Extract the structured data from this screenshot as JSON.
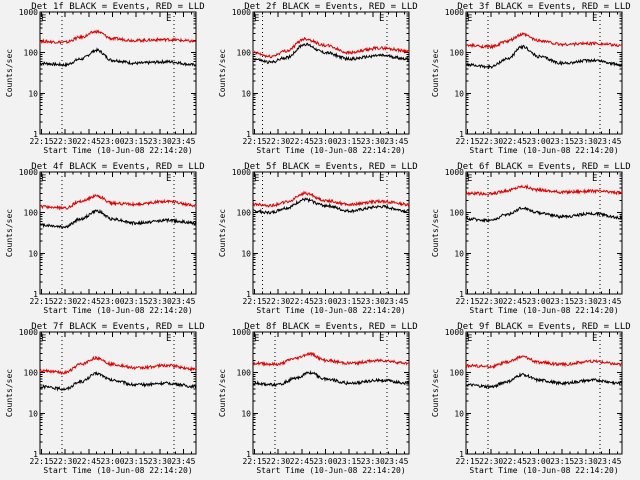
{
  "colors": {
    "background": "#f2f2f2",
    "events": "#000000",
    "lld": "#e00000"
  },
  "chart_data": [
    {
      "type": "line",
      "title": "Det 1f BLACK = Events, RED = LLD",
      "xlabel": "Start Time (10-Jun-08 22:14:20)",
      "ylabel": "Counts/sec",
      "yscale": "log",
      "ylim": [
        1,
        1000
      ],
      "yticks": [
        "1",
        "10",
        "100",
        "1000"
      ],
      "xticks": [
        "22:15",
        "22:30",
        "22:45",
        "23:00",
        "23:15",
        "23:30",
        "23:45"
      ],
      "xlim": [
        "22:14",
        "23:53"
      ],
      "markers": [
        "22:28",
        "23:39"
      ],
      "marker_labels": [
        "E",
        "E"
      ],
      "series": [
        {
          "name": "Events",
          "color": "#000000",
          "x": [
            "22:14",
            "22:30",
            "22:40",
            "22:50",
            "23:00",
            "23:15",
            "23:35",
            "23:53"
          ],
          "values": [
            55,
            50,
            70,
            115,
            65,
            55,
            60,
            50
          ]
        },
        {
          "name": "LLD",
          "color": "#e00000",
          "x": [
            "22:14",
            "22:30",
            "22:40",
            "22:50",
            "23:00",
            "23:15",
            "23:35",
            "23:53"
          ],
          "values": [
            190,
            180,
            240,
            330,
            220,
            200,
            210,
            190
          ]
        }
      ]
    },
    {
      "type": "line",
      "title": "Det 2f BLACK = Events, RED = LLD",
      "xlabel": "Start Time (10-Jun-08 22:14:20)",
      "ylabel": "Counts/sec",
      "yscale": "log",
      "ylim": [
        1,
        1000
      ],
      "yticks": [
        "1",
        "10",
        "100",
        "1000"
      ],
      "xticks": [
        "22:15",
        "22:30",
        "22:45",
        "23:00",
        "23:15",
        "23:30",
        "23:45"
      ],
      "xlim": [
        "22:14",
        "23:53"
      ],
      "markers": [
        "22:20",
        "23:39"
      ],
      "marker_labels": [
        "E",
        "E"
      ],
      "series": [
        {
          "name": "Events",
          "color": "#000000",
          "x": [
            "22:14",
            "22:25",
            "22:35",
            "22:47",
            "23:00",
            "23:15",
            "23:35",
            "23:53"
          ],
          "values": [
            70,
            58,
            75,
            160,
            100,
            70,
            85,
            70
          ]
        },
        {
          "name": "LLD",
          "color": "#e00000",
          "x": [
            "22:14",
            "22:25",
            "22:35",
            "22:47",
            "23:00",
            "23:15",
            "23:35",
            "23:53"
          ],
          "values": [
            100,
            80,
            110,
            220,
            150,
            100,
            130,
            110
          ]
        }
      ]
    },
    {
      "type": "line",
      "title": "Det 3f BLACK = Events, RED = LLD",
      "xlabel": "Start Time (10-Jun-08 22:14:20)",
      "ylabel": "Counts/sec",
      "yscale": "log",
      "ylim": [
        1,
        1000
      ],
      "yticks": [
        "1",
        "10",
        "100",
        "1000"
      ],
      "xticks": [
        "22:15",
        "22:30",
        "22:45",
        "23:00",
        "23:15",
        "23:30",
        "23:45"
      ],
      "xlim": [
        "22:14",
        "23:53"
      ],
      "markers": [
        "22:28",
        "23:39"
      ],
      "marker_labels": [
        "E",
        "E"
      ],
      "series": [
        {
          "name": "Events",
          "color": "#000000",
          "x": [
            "22:14",
            "22:30",
            "22:40",
            "22:50",
            "23:00",
            "23:15",
            "23:35",
            "23:53"
          ],
          "values": [
            50,
            45,
            70,
            140,
            80,
            55,
            65,
            50
          ]
        },
        {
          "name": "LLD",
          "color": "#e00000",
          "x": [
            "22:14",
            "22:30",
            "22:40",
            "22:50",
            "23:00",
            "23:15",
            "23:35",
            "23:53"
          ],
          "values": [
            150,
            140,
            190,
            280,
            200,
            160,
            170,
            150
          ]
        }
      ]
    },
    {
      "type": "line",
      "title": "Det 4f BLACK = Events, RED = LLD",
      "xlabel": "Start Time (10-Jun-08 22:14:20)",
      "ylabel": "Counts/sec",
      "yscale": "log",
      "ylim": [
        1,
        1000
      ],
      "yticks": [
        "1",
        "10",
        "100",
        "1000"
      ],
      "xticks": [
        "22:15",
        "22:30",
        "22:45",
        "23:00",
        "23:15",
        "23:30",
        "23:45"
      ],
      "xlim": [
        "22:14",
        "23:53"
      ],
      "markers": [
        "22:28",
        "23:39"
      ],
      "marker_labels": [
        "E",
        "E"
      ],
      "series": [
        {
          "name": "Events",
          "color": "#000000",
          "x": [
            "22:14",
            "22:30",
            "22:40",
            "22:50",
            "23:00",
            "23:15",
            "23:35",
            "23:53"
          ],
          "values": [
            50,
            45,
            70,
            110,
            70,
            55,
            65,
            55
          ]
        },
        {
          "name": "LLD",
          "color": "#e00000",
          "x": [
            "22:14",
            "22:30",
            "22:40",
            "22:50",
            "23:00",
            "23:15",
            "23:35",
            "23:53"
          ],
          "values": [
            140,
            130,
            190,
            260,
            170,
            160,
            190,
            150
          ]
        }
      ]
    },
    {
      "type": "line",
      "title": "Det 5f BLACK = Events, RED = LLD",
      "xlabel": "Start Time (10-Jun-08 22:14:20)",
      "ylabel": "Counts/sec",
      "yscale": "log",
      "ylim": [
        1,
        1000
      ],
      "yticks": [
        "1",
        "10",
        "100",
        "1000"
      ],
      "xticks": [
        "22:15",
        "22:30",
        "22:45",
        "23:00",
        "23:15",
        "23:30",
        "23:45"
      ],
      "xlim": [
        "22:14",
        "23:53"
      ],
      "markers": [
        "22:20",
        "23:39"
      ],
      "marker_labels": [
        "E",
        "E"
      ],
      "series": [
        {
          "name": "Events",
          "color": "#000000",
          "x": [
            "22:14",
            "22:25",
            "22:35",
            "22:47",
            "23:00",
            "23:15",
            "23:35",
            "23:53"
          ],
          "values": [
            110,
            100,
            130,
            210,
            150,
            110,
            140,
            110
          ]
        },
        {
          "name": "LLD",
          "color": "#e00000",
          "x": [
            "22:14",
            "22:25",
            "22:35",
            "22:47",
            "23:00",
            "23:15",
            "23:35",
            "23:53"
          ],
          "values": [
            160,
            150,
            180,
            300,
            200,
            160,
            190,
            160
          ]
        }
      ]
    },
    {
      "type": "line",
      "title": "Det 6f BLACK = Events, RED = LLD",
      "xlabel": "Start Time (10-Jun-08 22:14:20)",
      "ylabel": "Counts/sec",
      "yscale": "log",
      "ylim": [
        1,
        1000
      ],
      "yticks": [
        "1",
        "10",
        "100",
        "1000"
      ],
      "xticks": [
        "22:15",
        "22:30",
        "22:45",
        "23:00",
        "23:15",
        "23:30",
        "23:45"
      ],
      "xlim": [
        "22:14",
        "23:53"
      ],
      "markers": [
        "22:28",
        "23:39"
      ],
      "marker_labels": [
        "E",
        "E"
      ],
      "series": [
        {
          "name": "Events",
          "color": "#000000",
          "x": [
            "22:14",
            "22:30",
            "22:40",
            "22:50",
            "23:00",
            "23:15",
            "23:35",
            "23:53"
          ],
          "values": [
            70,
            65,
            90,
            130,
            100,
            80,
            95,
            75
          ]
        },
        {
          "name": "LLD",
          "color": "#e00000",
          "x": [
            "22:14",
            "22:30",
            "22:40",
            "22:50",
            "23:00",
            "23:15",
            "23:35",
            "23:53"
          ],
          "values": [
            300,
            290,
            350,
            440,
            360,
            320,
            340,
            310
          ]
        }
      ]
    },
    {
      "type": "line",
      "title": "Det 7f BLACK = Events, RED = LLD",
      "xlabel": "Start Time (10-Jun-08 22:14:20)",
      "ylabel": "Counts/sec",
      "yscale": "log",
      "ylim": [
        1,
        1000
      ],
      "yticks": [
        "1",
        "10",
        "100",
        "1000"
      ],
      "xticks": [
        "22:15",
        "22:30",
        "22:45",
        "23:00",
        "23:15",
        "23:30",
        "23:45"
      ],
      "xlim": [
        "22:14",
        "23:53"
      ],
      "markers": [
        "22:28",
        "23:39"
      ],
      "marker_labels": [
        "E",
        "E"
      ],
      "series": [
        {
          "name": "Events",
          "color": "#000000",
          "x": [
            "22:14",
            "22:30",
            "22:40",
            "22:50",
            "23:00",
            "23:15",
            "23:35",
            "23:53"
          ],
          "values": [
            45,
            40,
            60,
            95,
            65,
            50,
            55,
            45
          ]
        },
        {
          "name": "LLD",
          "color": "#e00000",
          "x": [
            "22:14",
            "22:30",
            "22:40",
            "22:50",
            "23:00",
            "23:15",
            "23:35",
            "23:53"
          ],
          "values": [
            110,
            100,
            160,
            230,
            160,
            130,
            150,
            120
          ]
        }
      ]
    },
    {
      "type": "line",
      "title": "Det 8f BLACK = Events, RED = LLD",
      "xlabel": "Start Time (10-Jun-08 22:14:20)",
      "ylabel": "Counts/sec",
      "yscale": "log",
      "ylim": [
        1,
        1000
      ],
      "yticks": [
        "1",
        "10",
        "100",
        "1000"
      ],
      "xticks": [
        "22:15",
        "22:30",
        "22:45",
        "23:00",
        "23:15",
        "23:30",
        "23:45"
      ],
      "xlim": [
        "22:14",
        "23:53"
      ],
      "markers": [
        "22:28",
        "23:39"
      ],
      "marker_labels": [
        "E",
        "E"
      ],
      "series": [
        {
          "name": "Events",
          "color": "#000000",
          "x": [
            "22:14",
            "22:30",
            "22:40",
            "22:50",
            "23:00",
            "23:15",
            "23:35",
            "23:53"
          ],
          "values": [
            55,
            50,
            70,
            100,
            70,
            55,
            65,
            55
          ]
        },
        {
          "name": "LLD",
          "color": "#e00000",
          "x": [
            "22:14",
            "22:30",
            "22:40",
            "22:50",
            "23:00",
            "23:15",
            "23:35",
            "23:53"
          ],
          "values": [
            170,
            160,
            220,
            290,
            200,
            170,
            200,
            170
          ]
        }
      ]
    },
    {
      "type": "line",
      "title": "Det 9f BLACK = Events, RED = LLD",
      "xlabel": "Start Time (10-Jun-08 22:14:20)",
      "ylabel": "Counts/sec",
      "yscale": "log",
      "ylim": [
        1,
        1000
      ],
      "yticks": [
        "1",
        "10",
        "100",
        "1000"
      ],
      "xticks": [
        "22:15",
        "22:30",
        "22:45",
        "23:00",
        "23:15",
        "23:30",
        "23:45"
      ],
      "xlim": [
        "22:14",
        "23:53"
      ],
      "markers": [
        "22:28",
        "23:39"
      ],
      "marker_labels": [
        "E",
        "E"
      ],
      "series": [
        {
          "name": "Events",
          "color": "#000000",
          "x": [
            "22:14",
            "22:30",
            "22:40",
            "22:50",
            "23:00",
            "23:15",
            "23:35",
            "23:53"
          ],
          "values": [
            50,
            45,
            60,
            90,
            65,
            55,
            65,
            55
          ]
        },
        {
          "name": "LLD",
          "color": "#e00000",
          "x": [
            "22:14",
            "22:30",
            "22:40",
            "22:50",
            "23:00",
            "23:15",
            "23:35",
            "23:53"
          ],
          "values": [
            150,
            140,
            180,
            250,
            180,
            160,
            190,
            160
          ]
        }
      ]
    }
  ]
}
